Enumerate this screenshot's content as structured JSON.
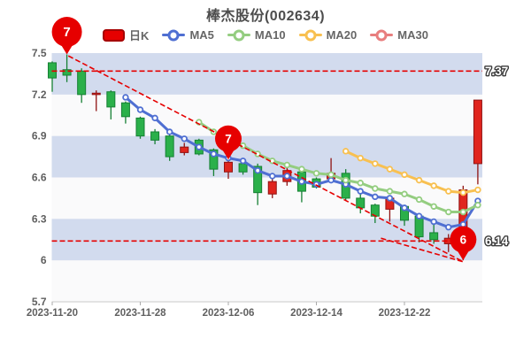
{
  "title": "棒杰股份(002634)",
  "legend": {
    "items": [
      {
        "label": "日K",
        "color": "#e60000",
        "type": "swatch"
      },
      {
        "label": "MA5",
        "color": "#4f6fd2",
        "type": "line"
      },
      {
        "label": "MA10",
        "color": "#94cd80",
        "type": "line"
      },
      {
        "label": "MA20",
        "color": "#f8c050",
        "type": "line"
      },
      {
        "label": "MA30",
        "color": "#e87e7e",
        "type": "line"
      }
    ]
  },
  "chart_data": {
    "type": "candlestick",
    "ylim": [
      5.7,
      7.5
    ],
    "y_ticks": [
      "7.5",
      "7.2",
      "6.9",
      "6.6",
      "6.3",
      "6",
      "5.7"
    ],
    "x_ticks": [
      {
        "day": 1,
        "label": "2023-11-20"
      },
      {
        "day": 7,
        "label": "2023-11-28"
      },
      {
        "day": 13,
        "label": "2023-12-06"
      },
      {
        "day": 19,
        "label": "2023-12-14"
      },
      {
        "day": 25,
        "label": "2023-12-22"
      }
    ],
    "dates": [
      "2023-11-20",
      "2023-11-21",
      "2023-11-22",
      "2023-11-23",
      "2023-11-24",
      "2023-11-27",
      "2023-11-28",
      "2023-11-29",
      "2023-11-30",
      "2023-12-01",
      "2023-12-04",
      "2023-12-05",
      "2023-12-06",
      "2023-12-07",
      "2023-12-08",
      "2023-12-11",
      "2023-12-12",
      "2023-12-13",
      "2023-12-14",
      "2023-12-15",
      "2023-12-18",
      "2023-12-19",
      "2023-12-20",
      "2023-12-21",
      "2023-12-22",
      "2023-12-25",
      "2023-12-26",
      "2023-12-27",
      "2023-12-28",
      "2023-12-29"
    ],
    "ohlc": [
      [
        7.43,
        7.44,
        7.22,
        7.32
      ],
      [
        7.38,
        7.49,
        7.29,
        7.34
      ],
      [
        7.37,
        7.39,
        7.14,
        7.2
      ],
      [
        7.2,
        7.23,
        7.08,
        7.21
      ],
      [
        7.22,
        7.23,
        7.02,
        7.11
      ],
      [
        7.14,
        7.15,
        6.99,
        7.04
      ],
      [
        7.03,
        7.04,
        6.88,
        6.9
      ],
      [
        6.93,
        6.95,
        6.84,
        6.87
      ],
      [
        6.9,
        6.91,
        6.72,
        6.75
      ],
      [
        6.78,
        6.85,
        6.76,
        6.82
      ],
      [
        6.87,
        6.88,
        6.76,
        6.77
      ],
      [
        6.8,
        6.81,
        6.61,
        6.66
      ],
      [
        6.64,
        6.72,
        6.59,
        6.71
      ],
      [
        6.7,
        6.71,
        6.62,
        6.64
      ],
      [
        6.68,
        6.7,
        6.4,
        6.49
      ],
      [
        6.48,
        6.63,
        6.45,
        6.57
      ],
      [
        6.57,
        6.69,
        6.54,
        6.65
      ],
      [
        6.64,
        6.66,
        6.42,
        6.5
      ],
      [
        6.59,
        6.6,
        6.52,
        6.53
      ],
      [
        6.59,
        6.74,
        6.56,
        6.63
      ],
      [
        6.63,
        6.66,
        6.43,
        6.45
      ],
      [
        6.45,
        6.5,
        6.34,
        6.38
      ],
      [
        6.4,
        6.41,
        6.27,
        6.32
      ],
      [
        6.37,
        6.47,
        6.28,
        6.45
      ],
      [
        6.39,
        6.4,
        6.25,
        6.29
      ],
      [
        6.32,
        6.34,
        6.13,
        6.17
      ],
      [
        6.2,
        6.26,
        6.12,
        6.15
      ],
      [
        6.12,
        6.19,
        6.06,
        6.16
      ],
      [
        6.16,
        6.54,
        6.0,
        6.51
      ],
      [
        6.7,
        7.16,
        6.55,
        7.16
      ]
    ],
    "series": [
      {
        "name": "MA5",
        "color": "#4f6fd2",
        "values": [
          null,
          null,
          null,
          null,
          null,
          7.18,
          7.09,
          7.03,
          6.93,
          6.88,
          6.82,
          6.77,
          6.74,
          6.72,
          6.65,
          6.61,
          6.61,
          6.57,
          6.55,
          6.58,
          6.55,
          6.5,
          6.46,
          6.45,
          6.38,
          6.32,
          6.28,
          6.24,
          6.26,
          6.43
        ]
      },
      {
        "name": "MA10",
        "color": "#94cd80",
        "values": [
          null,
          null,
          null,
          null,
          null,
          null,
          null,
          null,
          null,
          null,
          7.0,
          6.93,
          6.88,
          6.83,
          6.77,
          6.72,
          6.69,
          6.66,
          6.63,
          6.62,
          6.58,
          6.56,
          6.52,
          6.5,
          6.48,
          6.44,
          6.39,
          6.35,
          6.35,
          6.4
        ]
      },
      {
        "name": "MA20",
        "color": "#f8c050",
        "values": [
          null,
          null,
          null,
          null,
          null,
          null,
          null,
          null,
          null,
          null,
          null,
          null,
          null,
          null,
          null,
          null,
          null,
          null,
          null,
          null,
          6.79,
          6.74,
          6.7,
          6.66,
          6.62,
          6.58,
          6.54,
          6.5,
          6.49,
          6.51
        ]
      },
      {
        "name": "MA30",
        "color": "#e87e7e",
        "values": [
          null,
          null,
          null,
          null,
          null,
          null,
          null,
          null,
          null,
          null,
          null,
          null,
          null,
          null,
          null,
          null,
          null,
          null,
          null,
          null,
          null,
          null,
          null,
          null,
          null,
          null,
          null,
          null,
          null,
          null
        ]
      }
    ],
    "ref_lines": [
      {
        "price": 7.37,
        "label": "7.37",
        "to_day": null
      },
      {
        "price": 6.14,
        "label": "6.14",
        "to_day": 28
      }
    ],
    "trendlines": [
      {
        "from_day": 2.1,
        "from_price": 7.48,
        "to_day": 29,
        "to_price": 5.99
      },
      {
        "from_day": 23.4,
        "from_price": 6.16,
        "to_day": 29,
        "to_price": 5.99
      }
    ],
    "balloons": [
      {
        "text": "7",
        "day": 2,
        "price": 7.49,
        "r": 17
      },
      {
        "text": "7",
        "day": 13,
        "price": 6.73,
        "r": 15
      },
      {
        "text": "6",
        "day": 29,
        "price": 6.0,
        "r": 15
      }
    ],
    "colors": {
      "up_fill": "#e0251e",
      "up_stroke": "#8f1212",
      "down_fill": "#2bb04a",
      "down_stroke": "#168034",
      "dashed": "#e60000",
      "balloon": "#e60000",
      "band": "#d2dbee",
      "plot_bg": "#fafafb",
      "axis_text": "#606060",
      "axis_line": "#c9c9c9",
      "label_outline": "#3d3d3d"
    }
  }
}
